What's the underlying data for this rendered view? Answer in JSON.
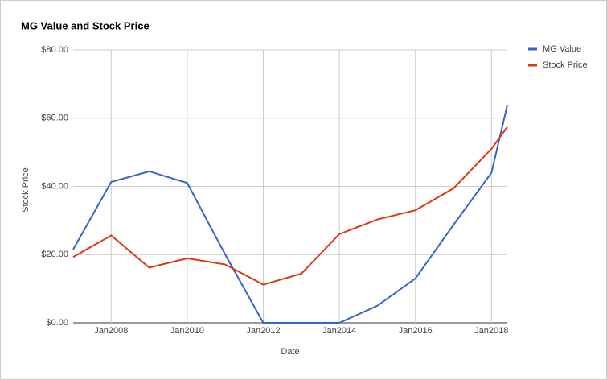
{
  "chart_data": {
    "type": "line",
    "title": "MG Value and Stock Price",
    "x_label": "Date",
    "y_label": "Stock Price",
    "x": [
      "2007-01",
      "2008-01",
      "2009-01",
      "2010-01",
      "2011-01",
      "2012-01",
      "2013-01",
      "2014-01",
      "2015-01",
      "2016-01",
      "2017-01",
      "2018-01",
      "2018-06"
    ],
    "series": [
      {
        "name": "MG Value",
        "color": "#3366cc",
        "values": [
          21.5,
          41.3,
          44.4,
          41,
          20,
          0,
          0,
          0,
          5,
          13,
          28.7,
          44,
          63.8
        ]
      },
      {
        "name": "Stock Price",
        "color": "#dc3912",
        "values": [
          19.3,
          25.6,
          16.2,
          18.9,
          17.1,
          11.2,
          14.4,
          26,
          30.3,
          33,
          39.4,
          51,
          57.4
        ]
      }
    ],
    "xlim": [
      "2007-01",
      "2018-06"
    ],
    "xticks": [
      {
        "value": "2008-01",
        "label": "Jan2008"
      },
      {
        "value": "2010-01",
        "label": "Jan2010"
      },
      {
        "value": "2012-01",
        "label": "Jan2012"
      },
      {
        "value": "2014-01",
        "label": "Jan2014"
      },
      {
        "value": "2016-01",
        "label": "Jan2016"
      },
      {
        "value": "2018-01",
        "label": "Jan2018"
      }
    ],
    "ylim": [
      0,
      80
    ],
    "yticks": [
      {
        "value": 0,
        "label": "$0.00"
      },
      {
        "value": 20,
        "label": "$20.00"
      },
      {
        "value": 40,
        "label": "$40.00"
      },
      {
        "value": 60,
        "label": "$60.00"
      },
      {
        "value": 80,
        "label": "$80.00"
      }
    ],
    "grid": true,
    "legend": "right"
  }
}
